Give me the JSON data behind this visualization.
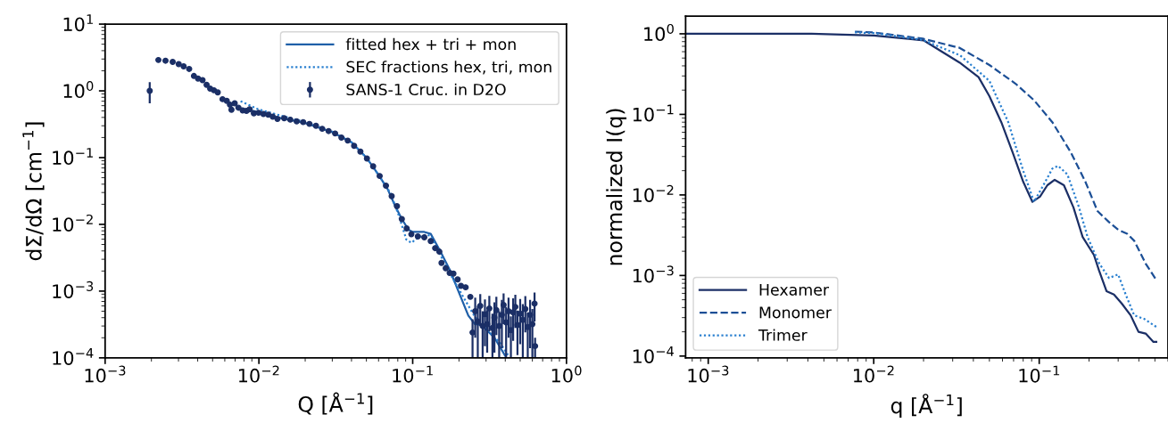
{
  "chart_data": [
    {
      "type": "line",
      "xlabel": "Q [Å$^{−1}$]",
      "ylabel": "dΣ/dΩ [cm$^{−1}$]",
      "log": "xy",
      "legend": "top right",
      "xlim": [
        0.001,
        1
      ],
      "ylim": [
        0.0001,
        10
      ],
      "xticks": [
        {
          "value": 0.001,
          "label": "10$^{−3}$"
        },
        {
          "value": 0.01,
          "label": "10$^{−2}$"
        },
        {
          "value": 0.1,
          "label": "10$^{−1}$"
        },
        {
          "value": 1,
          "label": "10$^{0}$"
        }
      ],
      "yticks": [
        {
          "value": 0.0001,
          "label": "10$^{−4}$"
        },
        {
          "value": 0.001,
          "label": "10$^{−3}$"
        },
        {
          "value": 0.01,
          "label": "10$^{−2}$"
        },
        {
          "value": 0.1,
          "label": "10$^{−1}$"
        },
        {
          "value": 1,
          "label": "10$^{0}$"
        },
        {
          "value": 10,
          "label": "10$^{1}$"
        }
      ],
      "series": [
        {
          "name": "fitted hex + tri + mon",
          "type": "line",
          "line_style": "solid",
          "color": "#1f5fa8",
          "x": [
            0.0076,
            0.0099,
            0.0132,
            0.02,
            0.03,
            0.04,
            0.05,
            0.06,
            0.0686,
            0.077,
            0.085,
            0.094,
            0.1,
            0.119,
            0.131,
            0.15,
            0.174,
            0.2,
            0.23,
            0.254,
            0.28,
            0.34,
            0.4
          ],
          "values": [
            0.55,
            0.48,
            0.4,
            0.33,
            0.24,
            0.17,
            0.1,
            0.055,
            0.034,
            0.0187,
            0.012,
            0.0083,
            0.0077,
            0.0077,
            0.0072,
            0.0041,
            0.0021,
            0.00095,
            0.00043,
            0.00032,
            0.00031,
            0.0002,
            0.000107
          ]
        },
        {
          "name": "SEC fractions hex, tri, mon",
          "type": "line",
          "line_style": "dotted",
          "color": "#2a80d0",
          "x": [
            0.0076,
            0.0099,
            0.0132,
            0.02,
            0.03,
            0.04,
            0.05,
            0.06,
            0.072,
            0.081,
            0.091,
            0.098,
            0.108,
            0.123,
            0.131,
            0.15,
            0.174,
            0.21,
            0.254,
            0.307,
            0.37,
            0.417
          ],
          "values": [
            0.7,
            0.53,
            0.44,
            0.34,
            0.245,
            0.17,
            0.1,
            0.055,
            0.029,
            0.0138,
            0.0059,
            0.0053,
            0.0063,
            0.0071,
            0.0066,
            0.0036,
            0.00187,
            0.00087,
            0.00041,
            0.00026,
            0.000167,
            0.00011
          ]
        },
        {
          "name": "SANS-1 Cruc. in D2O",
          "type": "scatter",
          "marker": "circle",
          "color": "#1b2f66",
          "x": [
            0.00195,
            0.00222,
            0.00247,
            0.00275,
            0.00301,
            0.00324,
            0.00352,
            0.00378,
            0.00402,
            0.0043,
            0.00457,
            0.00482,
            0.0051,
            0.0054,
            0.0058,
            0.00618,
            0.00648,
            0.00663,
            0.00696,
            0.00736,
            0.00784,
            0.0083,
            0.0087,
            0.00927,
            0.00995,
            0.0107,
            0.0115,
            0.0123,
            0.0132,
            0.0146,
            0.016,
            0.0176,
            0.0194,
            0.0213,
            0.0235,
            0.0258,
            0.0284,
            0.0313,
            0.0344,
            0.0378,
            0.0416,
            0.0457,
            0.0504,
            0.0553,
            0.061,
            0.067,
            0.073,
            0.079,
            0.085,
            0.0914,
            0.098,
            0.108,
            0.119,
            0.131,
            0.14,
            0.149,
            0.154,
            0.164,
            0.174,
            0.184,
            0.196,
            0.206,
            0.221,
            0.237,
            0.245,
            0.255,
            0.265,
            0.275,
            0.285,
            0.295,
            0.305,
            0.315,
            0.33,
            0.34,
            0.35,
            0.365,
            0.38,
            0.39,
            0.405,
            0.42,
            0.435,
            0.45,
            0.465,
            0.48,
            0.5,
            0.52,
            0.54,
            0.56,
            0.58,
            0.6,
            0.62,
            0.625
          ],
          "values": [
            1.0,
            2.9,
            2.83,
            2.71,
            2.51,
            2.33,
            2.13,
            1.67,
            1.53,
            1.45,
            1.23,
            1.08,
            1.02,
            0.95,
            0.75,
            0.71,
            0.62,
            0.52,
            0.65,
            0.56,
            0.51,
            0.5,
            0.53,
            0.46,
            0.47,
            0.45,
            0.44,
            0.41,
            0.38,
            0.39,
            0.37,
            0.35,
            0.34,
            0.32,
            0.3,
            0.27,
            0.25,
            0.23,
            0.2,
            0.18,
            0.15,
            0.123,
            0.097,
            0.074,
            0.053,
            0.038,
            0.0265,
            0.0187,
            0.012,
            0.0087,
            0.0071,
            0.0066,
            0.0064,
            0.0056,
            0.0044,
            0.0039,
            0.00265,
            0.0022,
            0.00187,
            0.00183,
            0.0015,
            0.0012,
            0.00114,
            0.00082,
            0.00024,
            0.0005,
            0.00035,
            0.0006,
            0.0003,
            0.00045,
            0.00032,
            0.00055,
            0.00028,
            0.0004,
            0.00052,
            0.0003,
            0.00044,
            0.00062,
            0.00034,
            0.0005,
            0.00026,
            0.00048,
            0.00058,
            0.00031,
            0.00046,
            0.00037,
            0.00054,
            0.00029,
            0.00044,
            0.00032,
            0.00065,
            0.00015
          ],
          "errors": [
            0.35,
            null,
            null,
            null,
            null,
            null,
            null,
            null,
            null,
            null,
            null,
            null,
            null,
            null,
            null,
            null,
            null,
            null,
            null,
            null,
            null,
            null,
            null,
            null,
            null,
            null,
            null,
            null,
            null,
            null,
            null,
            null,
            null,
            null,
            null,
            null,
            null,
            null,
            null,
            null,
            null,
            null,
            null,
            null,
            null,
            null,
            null,
            null,
            null,
            null,
            null,
            null,
            null,
            null,
            null,
            null,
            null,
            null,
            null,
            null,
            null,
            null,
            null,
            null,
            0.00014,
            0.0003,
            0.00025,
            0.0003,
            0.0002,
            0.0003,
            0.0002,
            0.0003,
            0.00018,
            0.00028,
            0.0003,
            0.0002,
            0.0003,
            0.0003,
            0.00024,
            0.0003,
            0.00016,
            0.0003,
            0.0003,
            0.0002,
            0.0003,
            0.00027,
            0.0003,
            0.00019,
            0.0003,
            0.00022,
            0.0003,
            5e-05
          ]
        }
      ]
    },
    {
      "type": "line",
      "xlabel": "q [Å$^{−1}$]",
      "ylabel": "normalized I(q)",
      "log": "xy",
      "legend": "bottom left",
      "xlim": [
        0.00073,
        0.6
      ],
      "ylim": [
        9.5e-05,
        1.66
      ],
      "xticks": [
        {
          "value": 0.001,
          "label": "10$^{−3}$"
        },
        {
          "value": 0.01,
          "label": "10$^{−2}$"
        },
        {
          "value": 0.1,
          "label": "10$^{−1}$"
        }
      ],
      "yticks": [
        {
          "value": 0.0001,
          "label": "10$^{−4}$"
        },
        {
          "value": 0.001,
          "label": "10$^{−3}$"
        },
        {
          "value": 0.01,
          "label": "10$^{−2}$"
        },
        {
          "value": 0.1,
          "label": "10$^{−1}$"
        },
        {
          "value": 1,
          "label": "10$^{0}$"
        }
      ],
      "series": [
        {
          "name": "Hexamer",
          "line_style": "solid",
          "color": "#1b2f66",
          "x": [
            0.00073,
            0.0042,
            0.01,
            0.02,
            0.0258,
            0.033,
            0.043,
            0.05,
            0.059,
            0.069,
            0.08,
            0.091,
            0.101,
            0.112,
            0.124,
            0.141,
            0.161,
            0.183,
            0.214,
            0.23,
            0.255,
            0.283,
            0.315,
            0.357,
            0.398,
            0.44,
            0.49,
            0.51
          ],
          "values": [
            1.0,
            1.0,
            0.95,
            0.83,
            0.6,
            0.44,
            0.29,
            0.168,
            0.08,
            0.034,
            0.0146,
            0.0082,
            0.0095,
            0.0132,
            0.0154,
            0.0132,
            0.007,
            0.003,
            0.0018,
            0.00115,
            0.00064,
            0.00058,
            0.00045,
            0.00032,
            0.0002,
            0.00019,
            0.00015,
            0.00015
          ]
        },
        {
          "name": "Monomer",
          "line_style": "dashed",
          "color": "#1c4f96",
          "x": [
            0.0077,
            0.01,
            0.0198,
            0.033,
            0.05,
            0.072,
            0.093,
            0.12,
            0.155,
            0.19,
            0.225,
            0.264,
            0.3,
            0.34,
            0.375,
            0.44,
            0.51
          ],
          "values": [
            1.065,
            1.04,
            0.87,
            0.67,
            0.41,
            0.24,
            0.15,
            0.08,
            0.034,
            0.0146,
            0.0063,
            0.0046,
            0.0037,
            0.0033,
            0.0027,
            0.0014,
            0.00088
          ]
        },
        {
          "name": "Trimer",
          "line_style": "dotted",
          "color": "#2a80d0",
          "x": [
            0.0077,
            0.01,
            0.0198,
            0.0333,
            0.05,
            0.065,
            0.08,
            0.093,
            0.106,
            0.12,
            0.13,
            0.148,
            0.174,
            0.196,
            0.23,
            0.264,
            0.3,
            0.33,
            0.375,
            0.43,
            0.51
          ],
          "values": [
            1.04,
            1.02,
            0.84,
            0.54,
            0.26,
            0.08,
            0.02,
            0.0082,
            0.0132,
            0.0212,
            0.023,
            0.018,
            0.007,
            0.003,
            0.00142,
            0.00093,
            0.00103,
            0.00061,
            0.00032,
            0.00029,
            0.00023
          ]
        }
      ]
    }
  ]
}
